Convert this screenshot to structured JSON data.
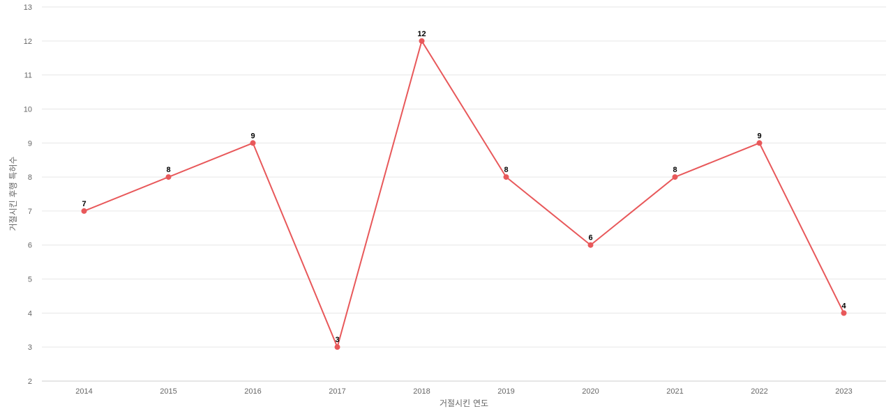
{
  "chart_data": {
    "type": "line",
    "title": "",
    "xlabel": "거절시킨 연도",
    "ylabel": "거절시킨 후행 특허수",
    "categories": [
      "2014",
      "2015",
      "2016",
      "2017",
      "2018",
      "2019",
      "2020",
      "2021",
      "2022",
      "2023"
    ],
    "series": [
      {
        "values": [
          7,
          8,
          9,
          3,
          12,
          8,
          6,
          8,
          9,
          4
        ],
        "color": "#e8585a"
      }
    ],
    "ylim": [
      2,
      13
    ],
    "yticks": [
      2,
      3,
      4,
      5,
      6,
      7,
      8,
      9,
      10,
      11,
      12,
      13
    ],
    "grid": true,
    "data_labels": true
  }
}
